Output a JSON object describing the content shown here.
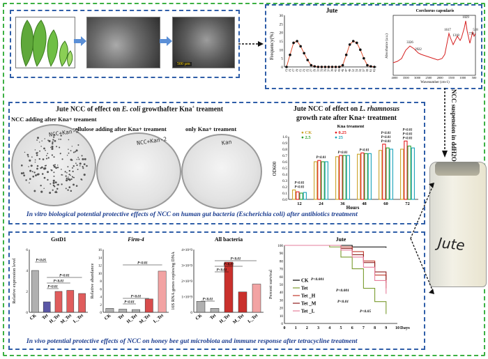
{
  "top": {
    "jute_chart_title": "Jute",
    "jute_ylabel": "Frequency(%)",
    "jute_yticks": [
      "0",
      "5",
      "10",
      "15",
      "20",
      "25",
      "30"
    ],
    "jute_xticks": [
      "13",
      "15",
      "17",
      "19",
      "21",
      "23",
      "25",
      "27",
      "29",
      "31",
      "33",
      "35",
      "37",
      "39",
      "41",
      "43",
      "45",
      "47",
      "49",
      "51",
      "53",
      "55",
      "57",
      "59",
      "61",
      "63"
    ],
    "jute_series": [
      0,
      7,
      14,
      15,
      12,
      8,
      4,
      1,
      0.3,
      0,
      0,
      0,
      0,
      0,
      0,
      0,
      1,
      7,
      13,
      15,
      14,
      10,
      5,
      1,
      0.3,
      0
    ],
    "ftir_title": "Corchorus capsularis",
    "ftir_ylabel": "Absorbance (a.u.)",
    "ftir_xlabel": "Wavenumber (cm-1)",
    "ftir_peaks": [
      "3326",
      "2922",
      "1617",
      "1318",
      "1029",
      "778",
      "518"
    ],
    "ftir_xticks": [
      "4000",
      "3500",
      "3000",
      "2500",
      "2000",
      "1500",
      "1000",
      "500"
    ],
    "sem_scale": "500 µm"
  },
  "side": {
    "arrow_label": "NCC suspension in ddH2O",
    "bottle_label": "Jute"
  },
  "mid_left": {
    "title_prefix": "Jute NCC of effect on ",
    "title_species": "E. coli",
    "title_suffix": " growthafter Kna",
    "title_sup": "+",
    "title_end": " treament",
    "dish1_caption": "NCC adding after Kna+ treament",
    "dish2_caption": "cellulose adding after Kna+ treament",
    "dish3_caption": "only Kna+ treament",
    "dish1_handwriting": "NCC+Kan-2",
    "dish2_handwriting": "NCC+Kan-2",
    "dish3_handwriting": "Kan"
  },
  "mid_right": {
    "title_line1_prefix": "Jute NCC of effect on ",
    "title_species": "L. rhamnosus",
    "title_line2": "growth rate after Kna+ treatment",
    "legend_title": "Kna treament",
    "legend": [
      {
        "name": "CK",
        "color": "#c9a227"
      },
      {
        "name": "0.25",
        "color": "#e31a1c"
      },
      {
        "name": "2.5",
        "color": "#2ca02c"
      },
      {
        "name": "25",
        "color": "#17a2b8"
      }
    ],
    "ylabel": "OD600",
    "xlabel": "Hours",
    "yticks": [
      "0.0",
      "0.1",
      "0.2",
      "0.3",
      "0.4",
      "0.5",
      "0.6",
      "0.7",
      "0.8",
      "0.9",
      "1.0"
    ],
    "pval": "P<0.01"
  },
  "mid_caption": {
    "prefix": "In vitro",
    "middle": " biological potential protective effects of NCC on human gut bacteria (",
    "species": "Escherichia coli",
    "suffix": ") after antibiotics treatment"
  },
  "bottom": {
    "pval": "P<0.01",
    "pval_05": "P<0.05",
    "pval_001": "P<0.001",
    "caption_prefix": "In vivo",
    "caption_rest": " potential protective effects of NCC on honey bee gut microbiota and immune response after tetracycline treatment",
    "days_label": "Days"
  },
  "chart_data": [
    {
      "type": "line",
      "title": "Jute",
      "ylabel": "Frequency(%)",
      "x": [
        "13",
        "15",
        "17",
        "19",
        "21",
        "23",
        "25",
        "27",
        "29",
        "31",
        "33",
        "35",
        "37",
        "39",
        "41",
        "43",
        "45",
        "47",
        "49",
        "51",
        "53",
        "55",
        "57",
        "59",
        "61",
        "63"
      ],
      "values": [
        0,
        7,
        14,
        15,
        12,
        8,
        4,
        1,
        0.3,
        0,
        0,
        0,
        0,
        0,
        0,
        0,
        1,
        7,
        13,
        15,
        14,
        10,
        5,
        1,
        0.3,
        0
      ],
      "ylim": [
        0,
        30
      ]
    },
    {
      "type": "bar",
      "title": "Jute NCC of effect on L. rhamnosus growth rate after Kna+ treatment",
      "xlabel": "Hours",
      "ylabel": "OD600",
      "categories": [
        "12",
        "24",
        "36",
        "48",
        "60",
        "72"
      ],
      "ylim": [
        0,
        1.0
      ],
      "series": [
        {
          "name": "CK",
          "values": [
            0.15,
            0.6,
            0.68,
            0.72,
            0.78,
            0.8
          ]
        },
        {
          "name": "0.25",
          "values": [
            0.12,
            0.62,
            0.7,
            0.74,
            0.88,
            0.93
          ]
        },
        {
          "name": "2.5",
          "values": [
            0.1,
            0.6,
            0.7,
            0.73,
            0.82,
            0.85
          ]
        },
        {
          "name": "25",
          "values": [
            0.11,
            0.6,
            0.7,
            0.73,
            0.8,
            0.82
          ]
        }
      ]
    },
    {
      "type": "bar",
      "title": "GstD1",
      "ylabel": "Relative expression level",
      "categories": [
        "CK",
        "Tet",
        "H_Tet",
        "M_Tet",
        "L_Tet"
      ],
      "values": [
        4.0,
        1.0,
        2.0,
        2.1,
        1.8
      ],
      "ylim": [
        0,
        6
      ],
      "yticks": [
        "0",
        "2",
        "4",
        "6"
      ],
      "colors": [
        "#b0b0b0",
        "#5b57a6",
        "#e05c5c",
        "#e05c5c",
        "#e05c5c"
      ]
    },
    {
      "type": "bar",
      "title": "Firm-4",
      "ylabel": "Relative abandance",
      "categories": [
        "CK",
        "Tet",
        "H_Tet",
        "M_Tet",
        "L_Tet"
      ],
      "values": [
        1.0,
        0.8,
        0.7,
        3.4,
        10.5
      ],
      "ylim": [
        0,
        16
      ],
      "yticks": [
        "0",
        "2",
        "4",
        "6",
        "8",
        "10",
        "12",
        "14",
        "16"
      ],
      "colors": [
        "#b0b0b0",
        "#b0b0b0",
        "#b0b0b0",
        "#d84b4b",
        "#f2a3a3"
      ]
    },
    {
      "type": "bar",
      "title": "All bacteria",
      "ylabel": "16S RNA genes copies/ng DNA",
      "categories": [
        "CK",
        "Tet",
        "H_Tet",
        "M_Tet",
        "L_Tet"
      ],
      "values": [
        700000000.0,
        250000000.0,
        3200000000.0,
        1300000000.0,
        1800000000.0
      ],
      "ylim": [
        0,
        4000000000.0
      ],
      "yticks": [
        "0",
        "1×10^9",
        "2×10^9",
        "3×10^9",
        "4×10^9"
      ],
      "colors": [
        "#b0b0b0",
        "#b0b0b0",
        "#c9302c",
        "#c9302c",
        "#f2a3a3"
      ]
    },
    {
      "type": "line",
      "title": "Jute",
      "xlabel": "Days",
      "ylabel": "Percent survival",
      "x": [
        0,
        1,
        2,
        3,
        4,
        5,
        6,
        7,
        8,
        9,
        10
      ],
      "ylim": [
        0,
        100
      ],
      "yticks": [
        "0",
        "10",
        "20",
        "30",
        "40",
        "50",
        "60",
        "70",
        "80",
        "90",
        "100"
      ],
      "series": [
        {
          "name": "CK",
          "color": "#000000",
          "values": [
            100,
            100,
            100,
            100,
            100,
            100,
            98,
            98,
            98,
            97,
            null
          ]
        },
        {
          "name": "Tet",
          "color": "#7a9b2e",
          "values": [
            100,
            100,
            100,
            100,
            98,
            85,
            70,
            45,
            28,
            12,
            null
          ]
        },
        {
          "name": "Tet_H",
          "color": "#c0392b",
          "values": [
            100,
            100,
            100,
            100,
            100,
            98,
            92,
            80,
            62,
            45,
            null
          ]
        },
        {
          "name": "Tet_M",
          "color": "#8e1c1c",
          "values": [
            100,
            100,
            100,
            100,
            100,
            96,
            88,
            78,
            66,
            52,
            null
          ]
        },
        {
          "name": "Tet_L",
          "color": "#e67e9b",
          "values": [
            100,
            100,
            100,
            100,
            100,
            94,
            85,
            72,
            55,
            38,
            null
          ]
        }
      ]
    }
  ]
}
